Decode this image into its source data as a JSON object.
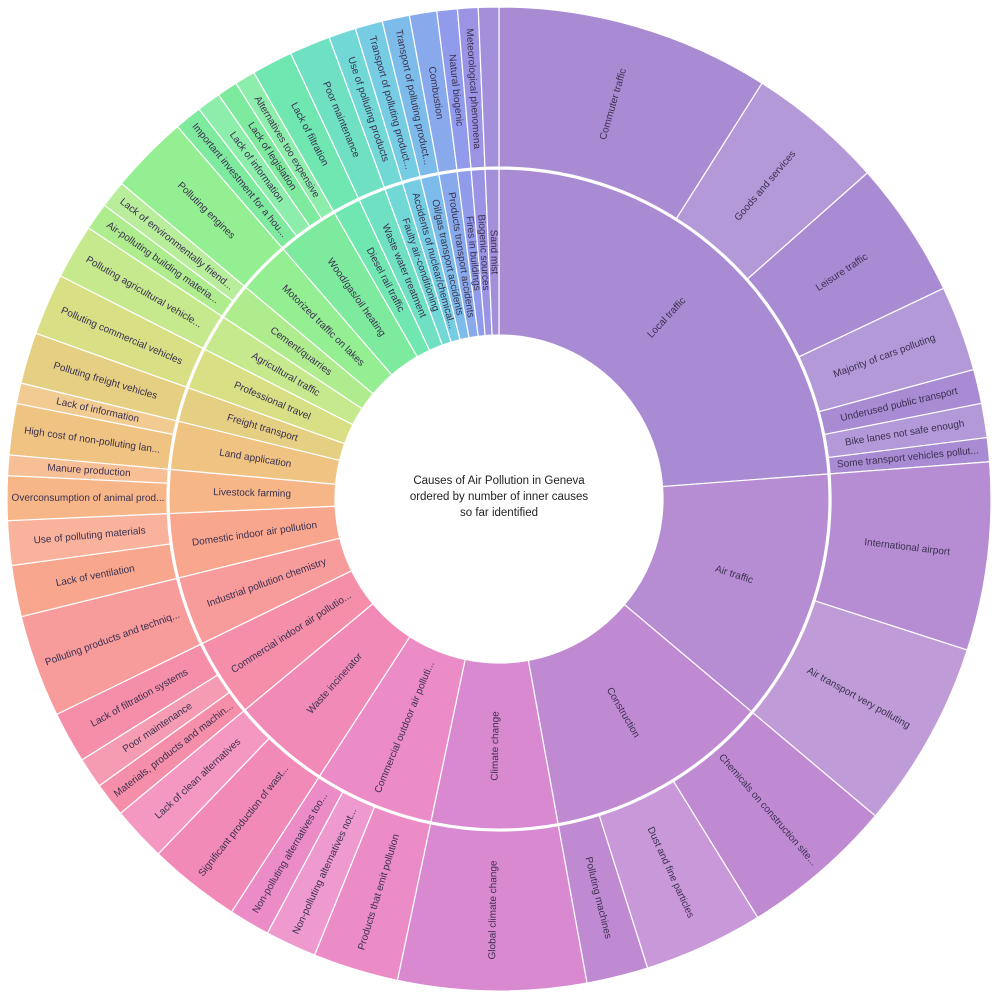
{
  "chart_data": {
    "type": "sunburst",
    "title": {
      "lines": [
        "Causes of Air Pollution in Geneva",
        "ordered by number of inner causes",
        "so far identified"
      ]
    },
    "categories": [
      {
        "name": "Local traffic",
        "color": "#a98bd3",
        "children": [
          {
            "name": "Commuter traffic",
            "value": 8
          },
          {
            "name": "Goods and services",
            "value": 4
          },
          {
            "name": "Leisure traffic",
            "value": 4
          },
          {
            "name": "Majority of cars polluting",
            "value": 2.5
          },
          {
            "name": "Underused public transport",
            "value": 1
          },
          {
            "name": "Bike lanes not safe enough",
            "value": 1
          },
          {
            "name": "Some transport vehicles pollut...",
            "value": 0.7
          }
        ]
      },
      {
        "name": "Air traffic",
        "color": "#b68dd2",
        "children": [
          {
            "name": "International airport",
            "value": 5.5
          },
          {
            "name": "Air transport very polluting",
            "value": 5.5
          }
        ]
      },
      {
        "name": "Construction",
        "color": "#c08ad3",
        "children": [
          {
            "name": "Chemicals on construction site...",
            "value": 4.5
          },
          {
            "name": "Dust and fine particles",
            "value": 3.5
          },
          {
            "name": "Polluting machines",
            "value": 1.8
          }
        ]
      },
      {
        "name": "Climate change",
        "color": "#d889cf",
        "children": [
          {
            "name": "Global climate change",
            "value": 5.5
          }
        ]
      },
      {
        "name": "Commercial outdoor air polluti...",
        "color": "#ec8cc7",
        "children": [
          {
            "name": "Products that emit pollution",
            "value": 2.5
          },
          {
            "name": "Non-polluting alternatives not...",
            "value": 1.5
          },
          {
            "name": "Non-polluting alternatives too...",
            "value": 1.2
          }
        ]
      },
      {
        "name": "Waste incinerator",
        "color": "#f28ab8",
        "children": [
          {
            "name": "Significant production of wast...",
            "value": 2.7
          },
          {
            "name": "Lack of clean alternatives",
            "value": 1.6
          }
        ]
      },
      {
        "name": "Commercial indoor air pollutio...",
        "color": "#f58ea8",
        "children": [
          {
            "name": "Materials, products and machin...",
            "value": 1
          },
          {
            "name": "Poor maintenance",
            "value": 0.9
          },
          {
            "name": "Lack of filtration systems",
            "value": 1.5
          }
        ]
      },
      {
        "name": "Industrial pollution chemistry",
        "color": "#f79b9b",
        "children": [
          {
            "name": "Polluting products and techniq...",
            "value": 3
          }
        ]
      },
      {
        "name": "Domestic indoor air pollution",
        "color": "#f8a78e",
        "children": [
          {
            "name": "Lack of ventilation",
            "value": 1.5
          },
          {
            "name": "Use of polluting materials",
            "value": 1.3
          }
        ]
      },
      {
        "name": "Livestock farming",
        "color": "#f6b688",
        "children": [
          {
            "name": "Overconsumption of animal prod...",
            "value": 1.3
          },
          {
            "name": "Manure production",
            "value": 0.6
          }
        ]
      },
      {
        "name": "Land application",
        "color": "#efc482",
        "children": [
          {
            "name": "High cost of non-polluting lan...",
            "value": 1.5
          },
          {
            "name": "Lack of information",
            "value": 0.6
          }
        ]
      },
      {
        "name": "Freight transport",
        "color": "#e5cf82",
        "children": [
          {
            "name": "Polluting freight vehicles",
            "value": 1.5
          }
        ]
      },
      {
        "name": "Professional travel",
        "color": "#d8df85",
        "children": [
          {
            "name": "Polluting commercial vehicles",
            "value": 1.8
          }
        ]
      },
      {
        "name": "Agricultural traffic",
        "color": "#c5e98c",
        "children": [
          {
            "name": "Polluting agricultural vehicle...",
            "value": 1.6
          }
        ]
      },
      {
        "name": "Cement/quarries",
        "color": "#aeec8d",
        "children": [
          {
            "name": "Air-polluting building materia...",
            "value": 0.8
          },
          {
            "name": "Lack of environmentally friend...",
            "value": 0.8
          }
        ]
      },
      {
        "name": "Motorized traffic on lakes",
        "color": "#94ee92",
        "children": [
          {
            "name": "Polluting engines",
            "value": 2.3
          }
        ]
      },
      {
        "name": "Wood/gas/oil heating",
        "color": "#7eea9e",
        "children": [
          {
            "name": "Important investment for a hou...",
            "value": 0.8
          },
          {
            "name": "Lack of information",
            "value": 0.7
          },
          {
            "name": "Lack of legislation",
            "value": 0.6
          },
          {
            "name": "Alternatives too expensive",
            "value": 0.6
          }
        ]
      },
      {
        "name": "Diesel rail traffic",
        "color": "#70e6b1",
        "children": [
          {
            "name": "Lack of filtration",
            "value": 1.2
          }
        ]
      },
      {
        "name": "Waste water treatment",
        "color": "#6fe1c2",
        "children": [
          {
            "name": "Poor maintenance",
            "value": 1.2
          }
        ]
      },
      {
        "name": "Faulty air-conditioning",
        "color": "#72d8d6",
        "children": [
          {
            "name": "Use of polluting products",
            "value": 0.8
          }
        ]
      },
      {
        "name": "Accidents of nuclear/chemical...",
        "color": "#75cce3",
        "children": [
          {
            "name": "Transport of polluting product...",
            "value": 0.8
          }
        ]
      },
      {
        "name": "Oil/gas transport accidents",
        "color": "#7dbcea",
        "children": [
          {
            "name": "Transport of polluting product...",
            "value": 0.8
          }
        ]
      },
      {
        "name": "Products transport accidents",
        "color": "#88aaec",
        "children": [
          {
            "name": "Combustion",
            "value": 0.8
          }
        ]
      },
      {
        "name": "Fires in buildings",
        "color": "#919beb",
        "children": [
          {
            "name": "Natural biogenic",
            "value": 0.6
          }
        ]
      },
      {
        "name": "Biogenic sources",
        "color": "#9b94e4",
        "children": [
          {
            "name": "Meteorological phenomena",
            "value": 0.6
          }
        ]
      },
      {
        "name": "Sand mist",
        "color": "#a38fda",
        "children": [
          {
            "name": "",
            "value": 0.6
          }
        ]
      }
    ]
  }
}
